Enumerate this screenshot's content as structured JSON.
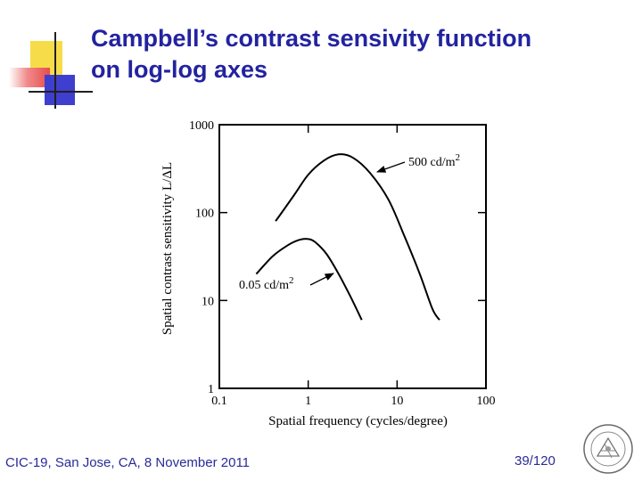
{
  "title": {
    "line1": "Campbell’s contrast sensivity function",
    "line2": "on log-log axes"
  },
  "footer": {
    "left": "CIC-19, San Jose, CA, 8 November 2011",
    "page": "39/120"
  },
  "colors": {
    "title": "#2323a0",
    "accent_yellow": "#f7dc4a",
    "accent_red": "#e84c4c",
    "accent_blue": "#3f3fcf"
  },
  "logo": {
    "icon": "university-seal-icon"
  },
  "chart_data": {
    "type": "line",
    "xlabel": "Spatial frequency (cycles/degree)",
    "ylabel": "Spatial contrast sensitivity L/ΔL",
    "x_scale": "log",
    "y_scale": "log",
    "xlim": [
      0.1,
      100
    ],
    "ylim": [
      1,
      1000
    ],
    "xticks": [
      {
        "value": 0.1,
        "label": "0.1"
      },
      {
        "value": 1,
        "label": "1"
      },
      {
        "value": 10,
        "label": "10"
      },
      {
        "value": 100,
        "label": "100"
      }
    ],
    "yticks": [
      {
        "value": 1,
        "label": "1"
      },
      {
        "value": 10,
        "label": "10"
      },
      {
        "value": 100,
        "label": "100"
      },
      {
        "value": 1000,
        "label": "1000"
      }
    ],
    "grid": false,
    "series": [
      {
        "name": "500 cd/m2",
        "label_main": "500 cd/m",
        "label_sup": "2",
        "points": [
          [
            0.43,
            80
          ],
          [
            0.7,
            160
          ],
          [
            1.0,
            270
          ],
          [
            1.5,
            390
          ],
          [
            2.2,
            460
          ],
          [
            3.2,
            420
          ],
          [
            5.0,
            280
          ],
          [
            8.0,
            140
          ],
          [
            12,
            55
          ],
          [
            18,
            20
          ],
          [
            25,
            8
          ],
          [
            30,
            6
          ]
        ]
      },
      {
        "name": "0.05 cd/m2",
        "label_main": "0.05 cd/m",
        "label_sup": "2",
        "points": [
          [
            0.26,
            20
          ],
          [
            0.4,
            32
          ],
          [
            0.6,
            43
          ],
          [
            0.8,
            49
          ],
          [
            1.0,
            50
          ],
          [
            1.2,
            46
          ],
          [
            1.6,
            34
          ],
          [
            2.2,
            20
          ],
          [
            3.0,
            11
          ],
          [
            4.0,
            6
          ]
        ]
      }
    ]
  }
}
